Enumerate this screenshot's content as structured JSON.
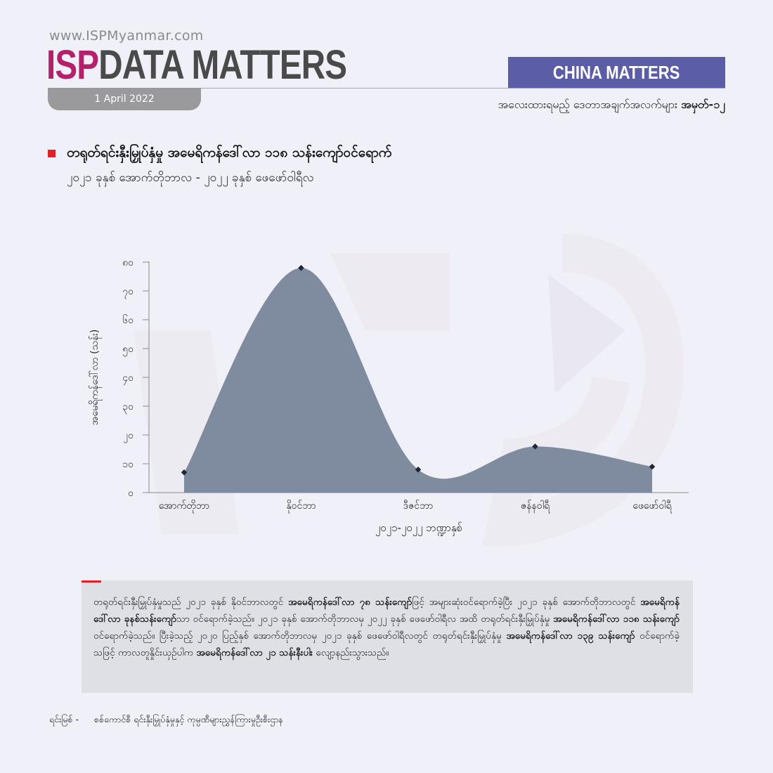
{
  "header": {
    "website": "www.ISPMyanmar.com",
    "brand_isp": "ISP",
    "brand_rest": "DATA MATTERS",
    "date": "1 April 2022",
    "badge": "CHINA MATTERS",
    "series_prefix": "အလေးထားရမည့် ဒေတာအချက်အလက်များ",
    "series_number": "အမှတ်-၁၂",
    "brand_colors": {
      "isp": "#b5206a",
      "badge": "#5b5ea6",
      "accent": "#e2202a"
    }
  },
  "chart_data": {
    "type": "area",
    "title": "တရုတ်ရင်းနှီးမြှုပ်နှံမှု အမေရိကန်ဒေါ်လာ ၁၁၈ သန်းကျော်ဝင်ရောက်",
    "subtitle": "၂၀၂၁ ခုနှစ် အောက်တိုဘာလ - ၂၀၂၂ ခုနှစ် ဖေဖော်ဝါရီလ",
    "xlabel": "၂၀၂၁-၂၀၂၂ ဘဏ္ဍာနှစ်",
    "ylabel": "အမေရိကန်ဒေါ်လာ (သန်း)",
    "categories": [
      "အောက်တိုဘာ",
      "နိုဝင်ဘာ",
      "ဒီဇင်ဘာ",
      "ဇန်နဝါရီ",
      "ဖေဖော်ဝါရီ"
    ],
    "values": [
      7,
      78,
      8,
      16,
      9
    ],
    "ylim": [
      0,
      80
    ],
    "yticks": [
      0,
      10,
      20,
      30,
      40,
      50,
      60,
      70,
      80
    ],
    "ytick_labels": [
      "၀",
      "၁၀",
      "၂၀",
      "၃၀",
      "၄၀",
      "၅၀",
      "၆၀",
      "၇၀",
      "၈၀"
    ],
    "fill_color": "#7f8c9f",
    "marker_color": "#1e2535",
    "grid": false,
    "legend": "none"
  },
  "note": {
    "parts": [
      {
        "t": "တရုတ်ရင်းနှီးမြှုပ်နှံမှုသည် ၂၀၂၁ ခုနှစ် နိုဝင်ဘာလတွင် ",
        "b": false
      },
      {
        "t": "အမေရိကန်ဒေါ်လာ ၇၈ သန်းကျော်",
        "b": true
      },
      {
        "t": "ဖြင့် အများဆုံးဝင်ရောက်ခဲ့ပြီး ၂၀၂၁ ခုနှစ် အောက်တိုဘာလတွင် ",
        "b": false
      },
      {
        "t": "အမေရိကန်ဒေါ်လာ ခုနစ်သန်းကျော်",
        "b": true
      },
      {
        "t": "သာ ဝင်ရောက်ခဲ့သည်။ ၂၀၂၁ ခုနှစ် အောက်တိုဘာလမှ ၂၀၂၂ ခုနှစ် ဖေဖော်ဝါရီလ အထိ တရုတ်ရင်းနှီးမြှုပ်နှံမှု ",
        "b": false
      },
      {
        "t": "အမေရိကန်ဒေါ်လာ ၁၁၈ သန်းကျော်",
        "b": true
      },
      {
        "t": " ဝင်ရောက်ခဲ့သည်။ ပြီးခဲ့သည့် ၂၀၂၀ ပြည့်နှစ် အောက်တိုဘာလမှ ၂၀၂၁ ခုနှစ် ဖေဖော်ဝါရီလတွင် တရုတ်ရင်းနှီးမြှုပ်နှံမှု ",
        "b": false
      },
      {
        "t": "အမေရိကန်ဒေါ်လာ ၁၃၉ သန်းကျော်",
        "b": true
      },
      {
        "t": " ဝင်ရောက်ခဲ့သဖြင့် ကာလတူနှိုင်းယှဉ်ပါက ",
        "b": false
      },
      {
        "t": "အမေရိကန်ဒေါ်လာ ၂၁ သန်းနီးပါး",
        "b": true
      },
      {
        "t": " လျော့နည်းသွားသည်။",
        "b": false
      }
    ]
  },
  "source": {
    "label": "ရင်းမြစ် -",
    "value": "စစ်ကောင်စီ ရင်းနှီးမြှုပ်နှံမှုနှင့် ကုမ္ပဏီများညွှန်ကြားမှုဦးစီးဌာန"
  }
}
